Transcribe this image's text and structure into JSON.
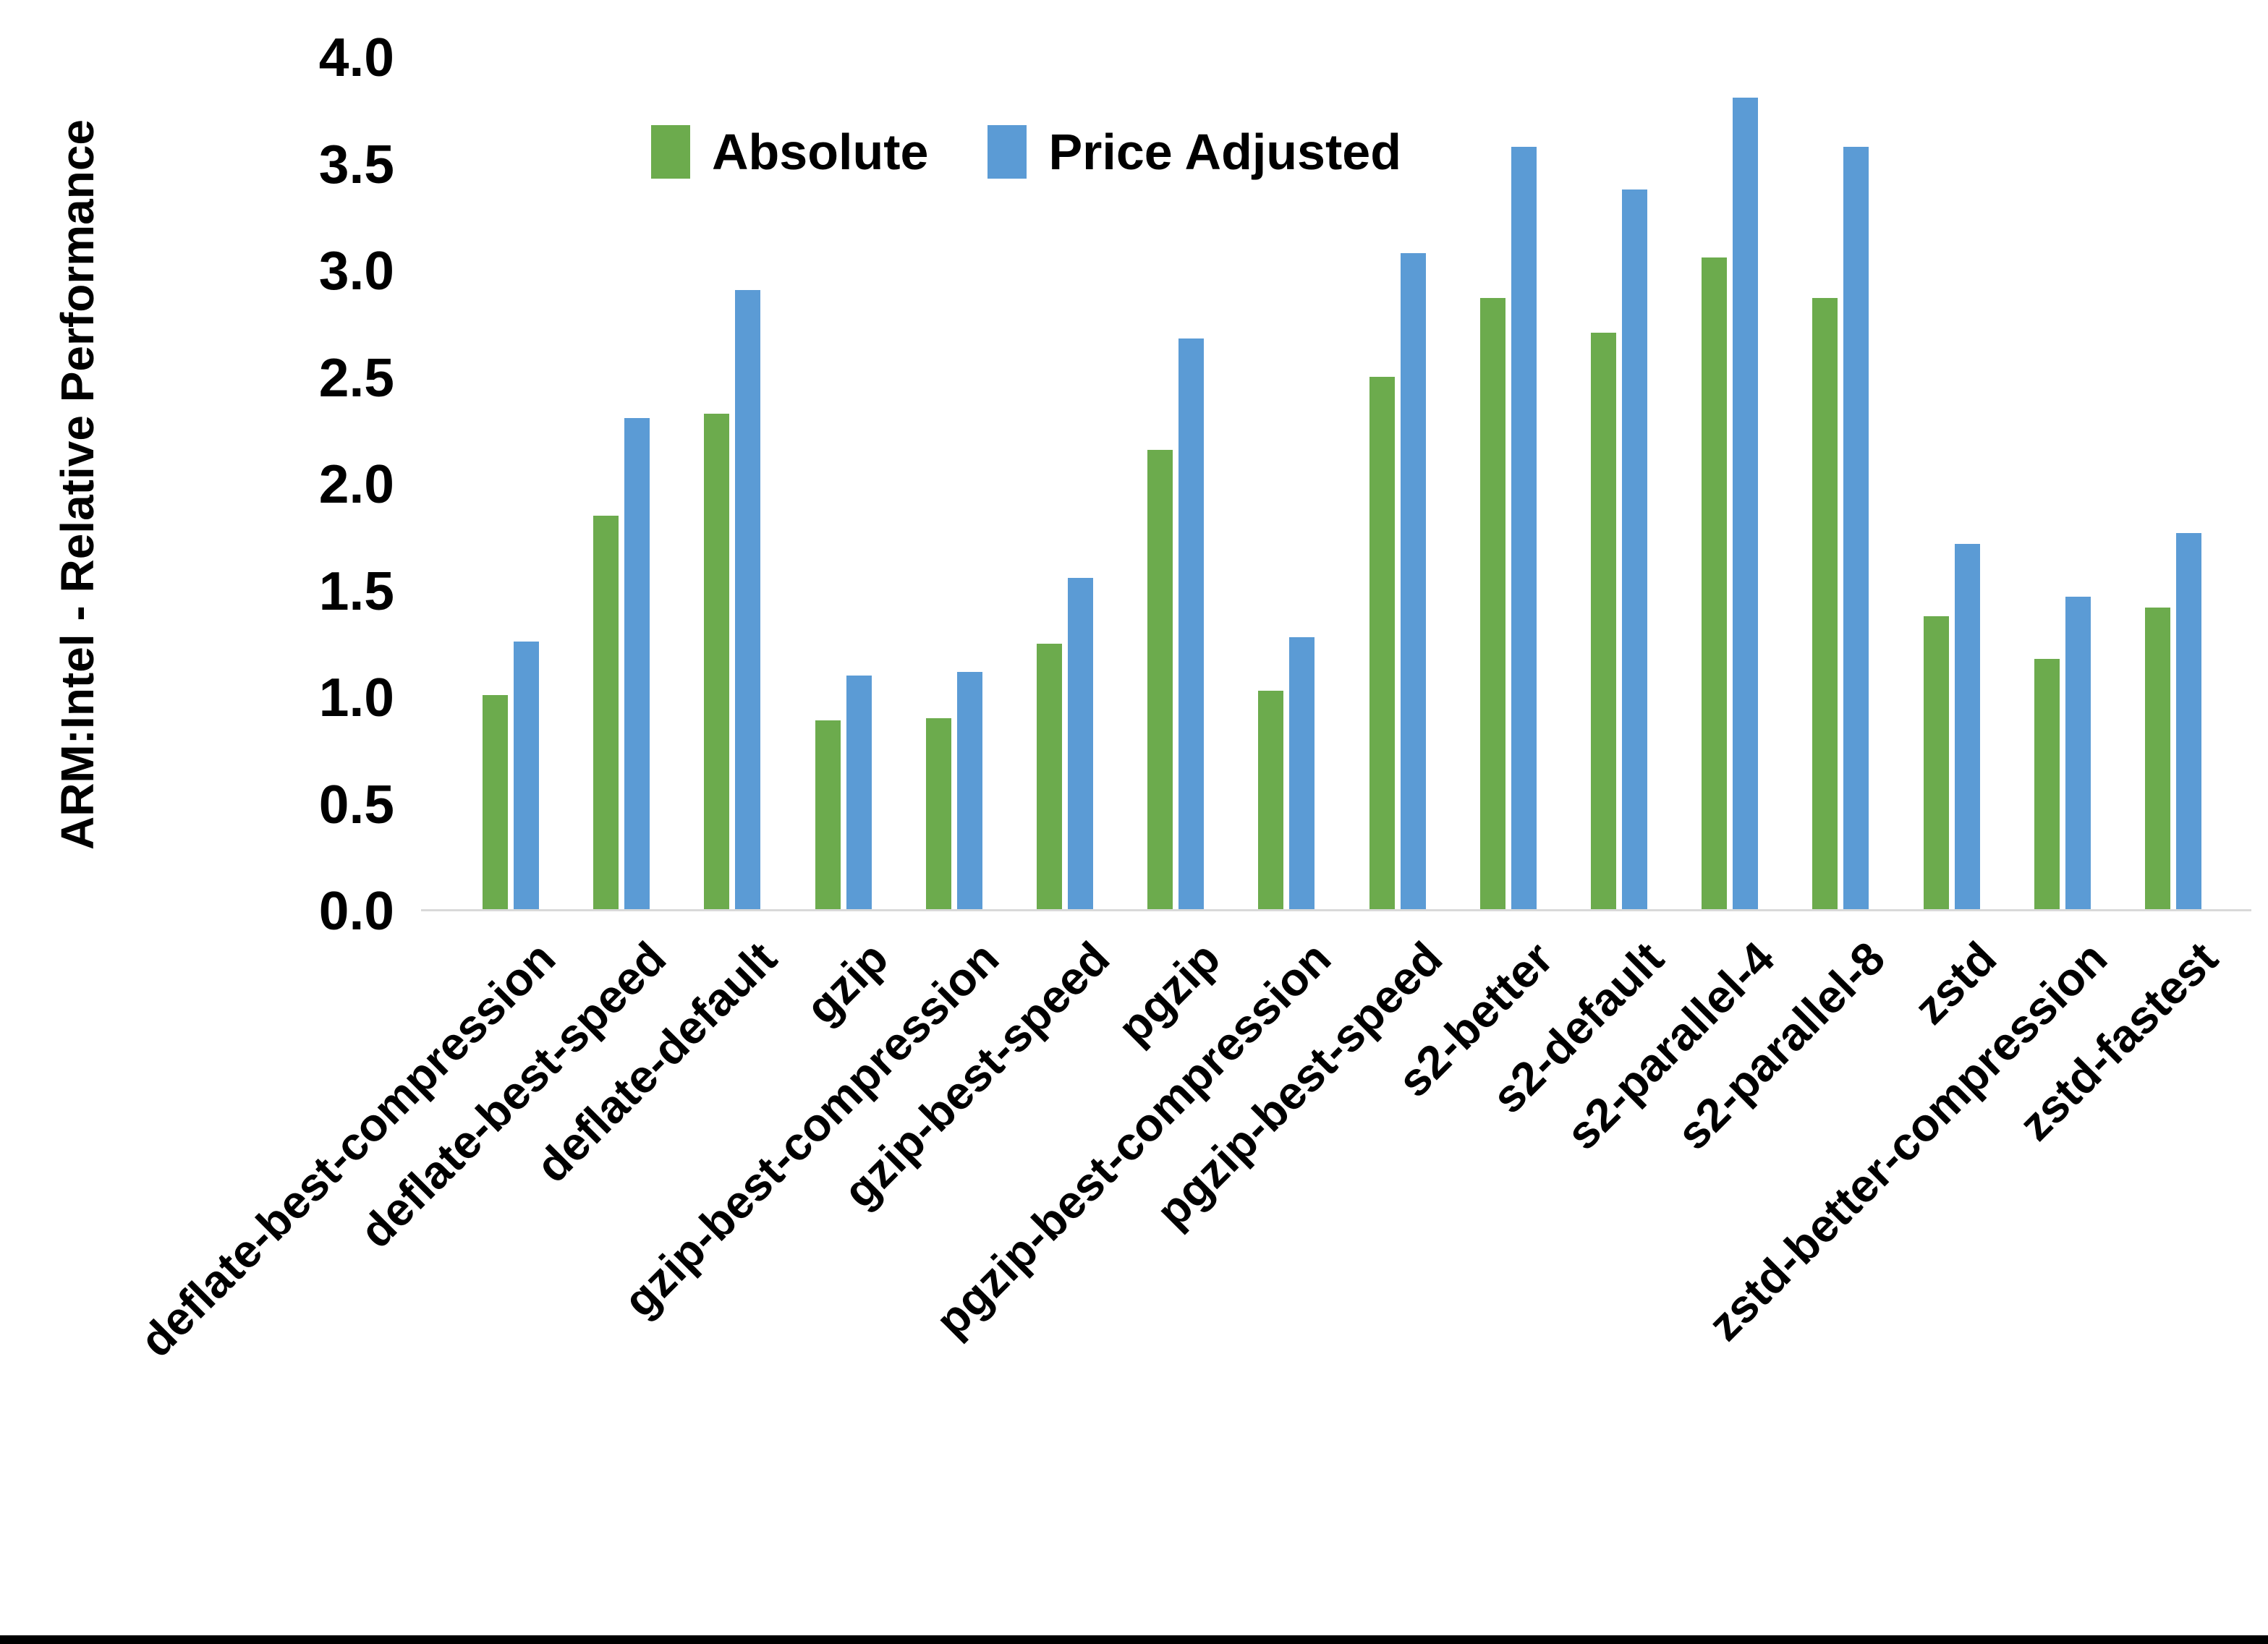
{
  "page": {
    "background": "#FFFFFF",
    "bottom_border_color": "#000000"
  },
  "chart_data": {
    "type": "bar",
    "title": "",
    "xlabel": "",
    "ylabel": "ARM:Intel - Relative Performance",
    "ylim": [
      0.0,
      4.0
    ],
    "ytick_step": 0.5,
    "ytick_labels": [
      "0.0",
      "0.5",
      "1.0",
      "1.5",
      "2.0",
      "2.5",
      "3.0",
      "3.5",
      "4.0"
    ],
    "grid": false,
    "legend_position": "top-center",
    "axis_line_color": "#D9D9D9",
    "text_color": "#000000",
    "categories": [
      "deflate-best-compression",
      "deflate-best-speed",
      "deflate-default",
      "gzip",
      "gzip-best-compression",
      "gzip-best-speed",
      "pgzip",
      "pgzip-best-compression",
      "pgzip-best-speed",
      "s2-better",
      "s2-default",
      "s2-parallel-4",
      "s2-parallel-8",
      "zstd",
      "zstd-better-compression",
      "zstd-fastest"
    ],
    "series": [
      {
        "name": "Absolute",
        "color": "#6CAB4D",
        "values": [
          1.01,
          1.85,
          2.33,
          0.89,
          0.9,
          1.25,
          2.16,
          1.03,
          2.5,
          2.87,
          2.71,
          3.06,
          2.87,
          1.38,
          1.18,
          1.42
        ]
      },
      {
        "name": "Price Adjusted",
        "color": "#5B9BD5",
        "values": [
          1.26,
          2.31,
          2.91,
          1.1,
          1.12,
          1.56,
          2.68,
          1.28,
          3.08,
          3.58,
          3.38,
          3.81,
          3.58,
          1.72,
          1.47,
          1.77
        ]
      }
    ]
  }
}
